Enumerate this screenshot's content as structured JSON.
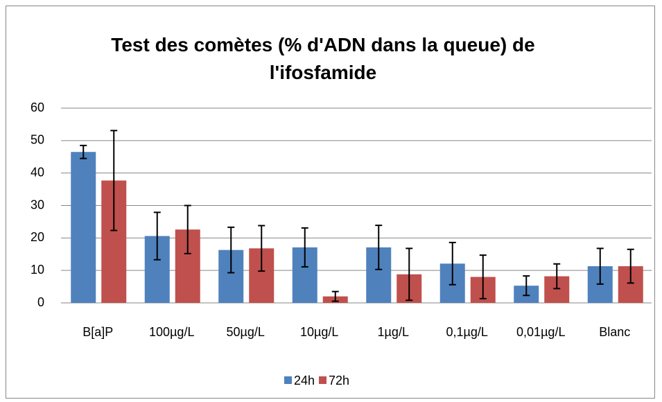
{
  "chart_data": {
    "type": "bar",
    "title": "Test des comètes (% d'ADN dans la queue) de l'ifosfamide",
    "categories": [
      "B[a]P",
      "100µg/L",
      "50µg/L",
      "10µg/L",
      "1µg/L",
      "0,1µg/L",
      "0,01µg/L",
      "Blanc"
    ],
    "series": [
      {
        "name": "24h",
        "color": "#4f81bd",
        "values": [
          46.5,
          20.6,
          16.3,
          17.1,
          17.1,
          12.1,
          5.3,
          11.3
        ],
        "errors": [
          2,
          7.3,
          7,
          6,
          6.8,
          6.5,
          3,
          5.5
        ]
      },
      {
        "name": "72h",
        "color": "#c0504d",
        "values": [
          37.7,
          22.6,
          16.8,
          2,
          8.8,
          8,
          8.2,
          11.3
        ],
        "errors": [
          15.4,
          7.4,
          7,
          1.5,
          8,
          6.7,
          3.8,
          5.2
        ]
      }
    ],
    "ylim": [
      0,
      60
    ],
    "yticks": [
      0,
      10,
      20,
      30,
      40,
      50,
      60
    ],
    "grid": true,
    "legend": "bottom"
  }
}
